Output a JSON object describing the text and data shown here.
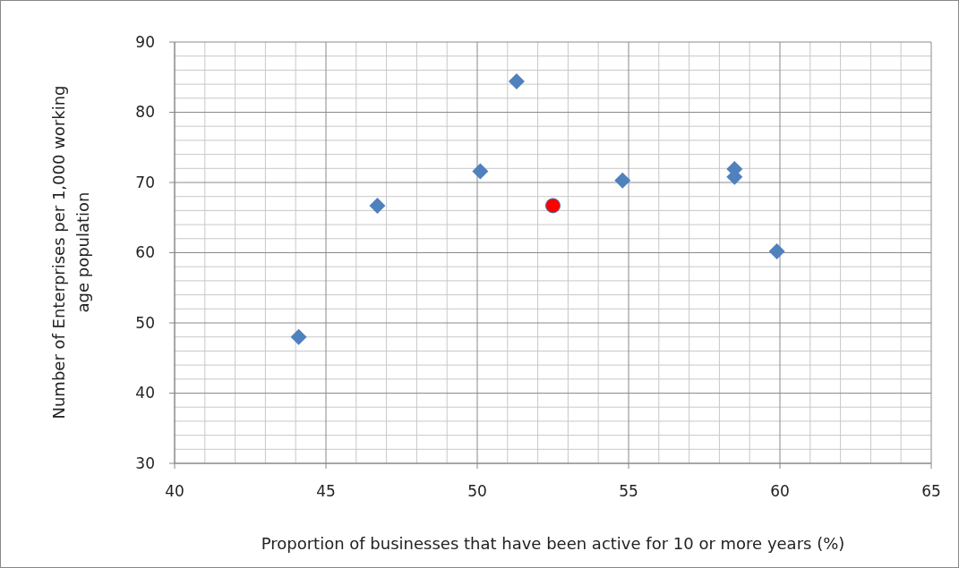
{
  "chart_data": {
    "type": "scatter",
    "xlabel": "Proportion of businesses that have been active for 10 or more years (%)",
    "ylabel": "Number of Enterprises per 1,000 working age population",
    "xlim": [
      40,
      65
    ],
    "xticks": [
      40,
      45,
      50,
      55,
      60,
      65
    ],
    "ylim": [
      30,
      90
    ],
    "yticks": [
      30,
      40,
      50,
      60,
      70,
      80,
      90
    ],
    "grid": true,
    "series": [
      {
        "color": "#4f81bd",
        "marker": "diamond",
        "x": [
          44.1,
          46.7,
          50.1,
          51.3,
          54.8,
          58.5,
          58.5,
          59.9
        ],
        "values": [
          48.0,
          66.7,
          71.6,
          84.4,
          70.3,
          71.9,
          70.8,
          60.2
        ]
      },
      {
        "color": "#ff0000",
        "marker": "circle",
        "x": [
          52.5
        ],
        "values": [
          66.7
        ]
      }
    ]
  }
}
